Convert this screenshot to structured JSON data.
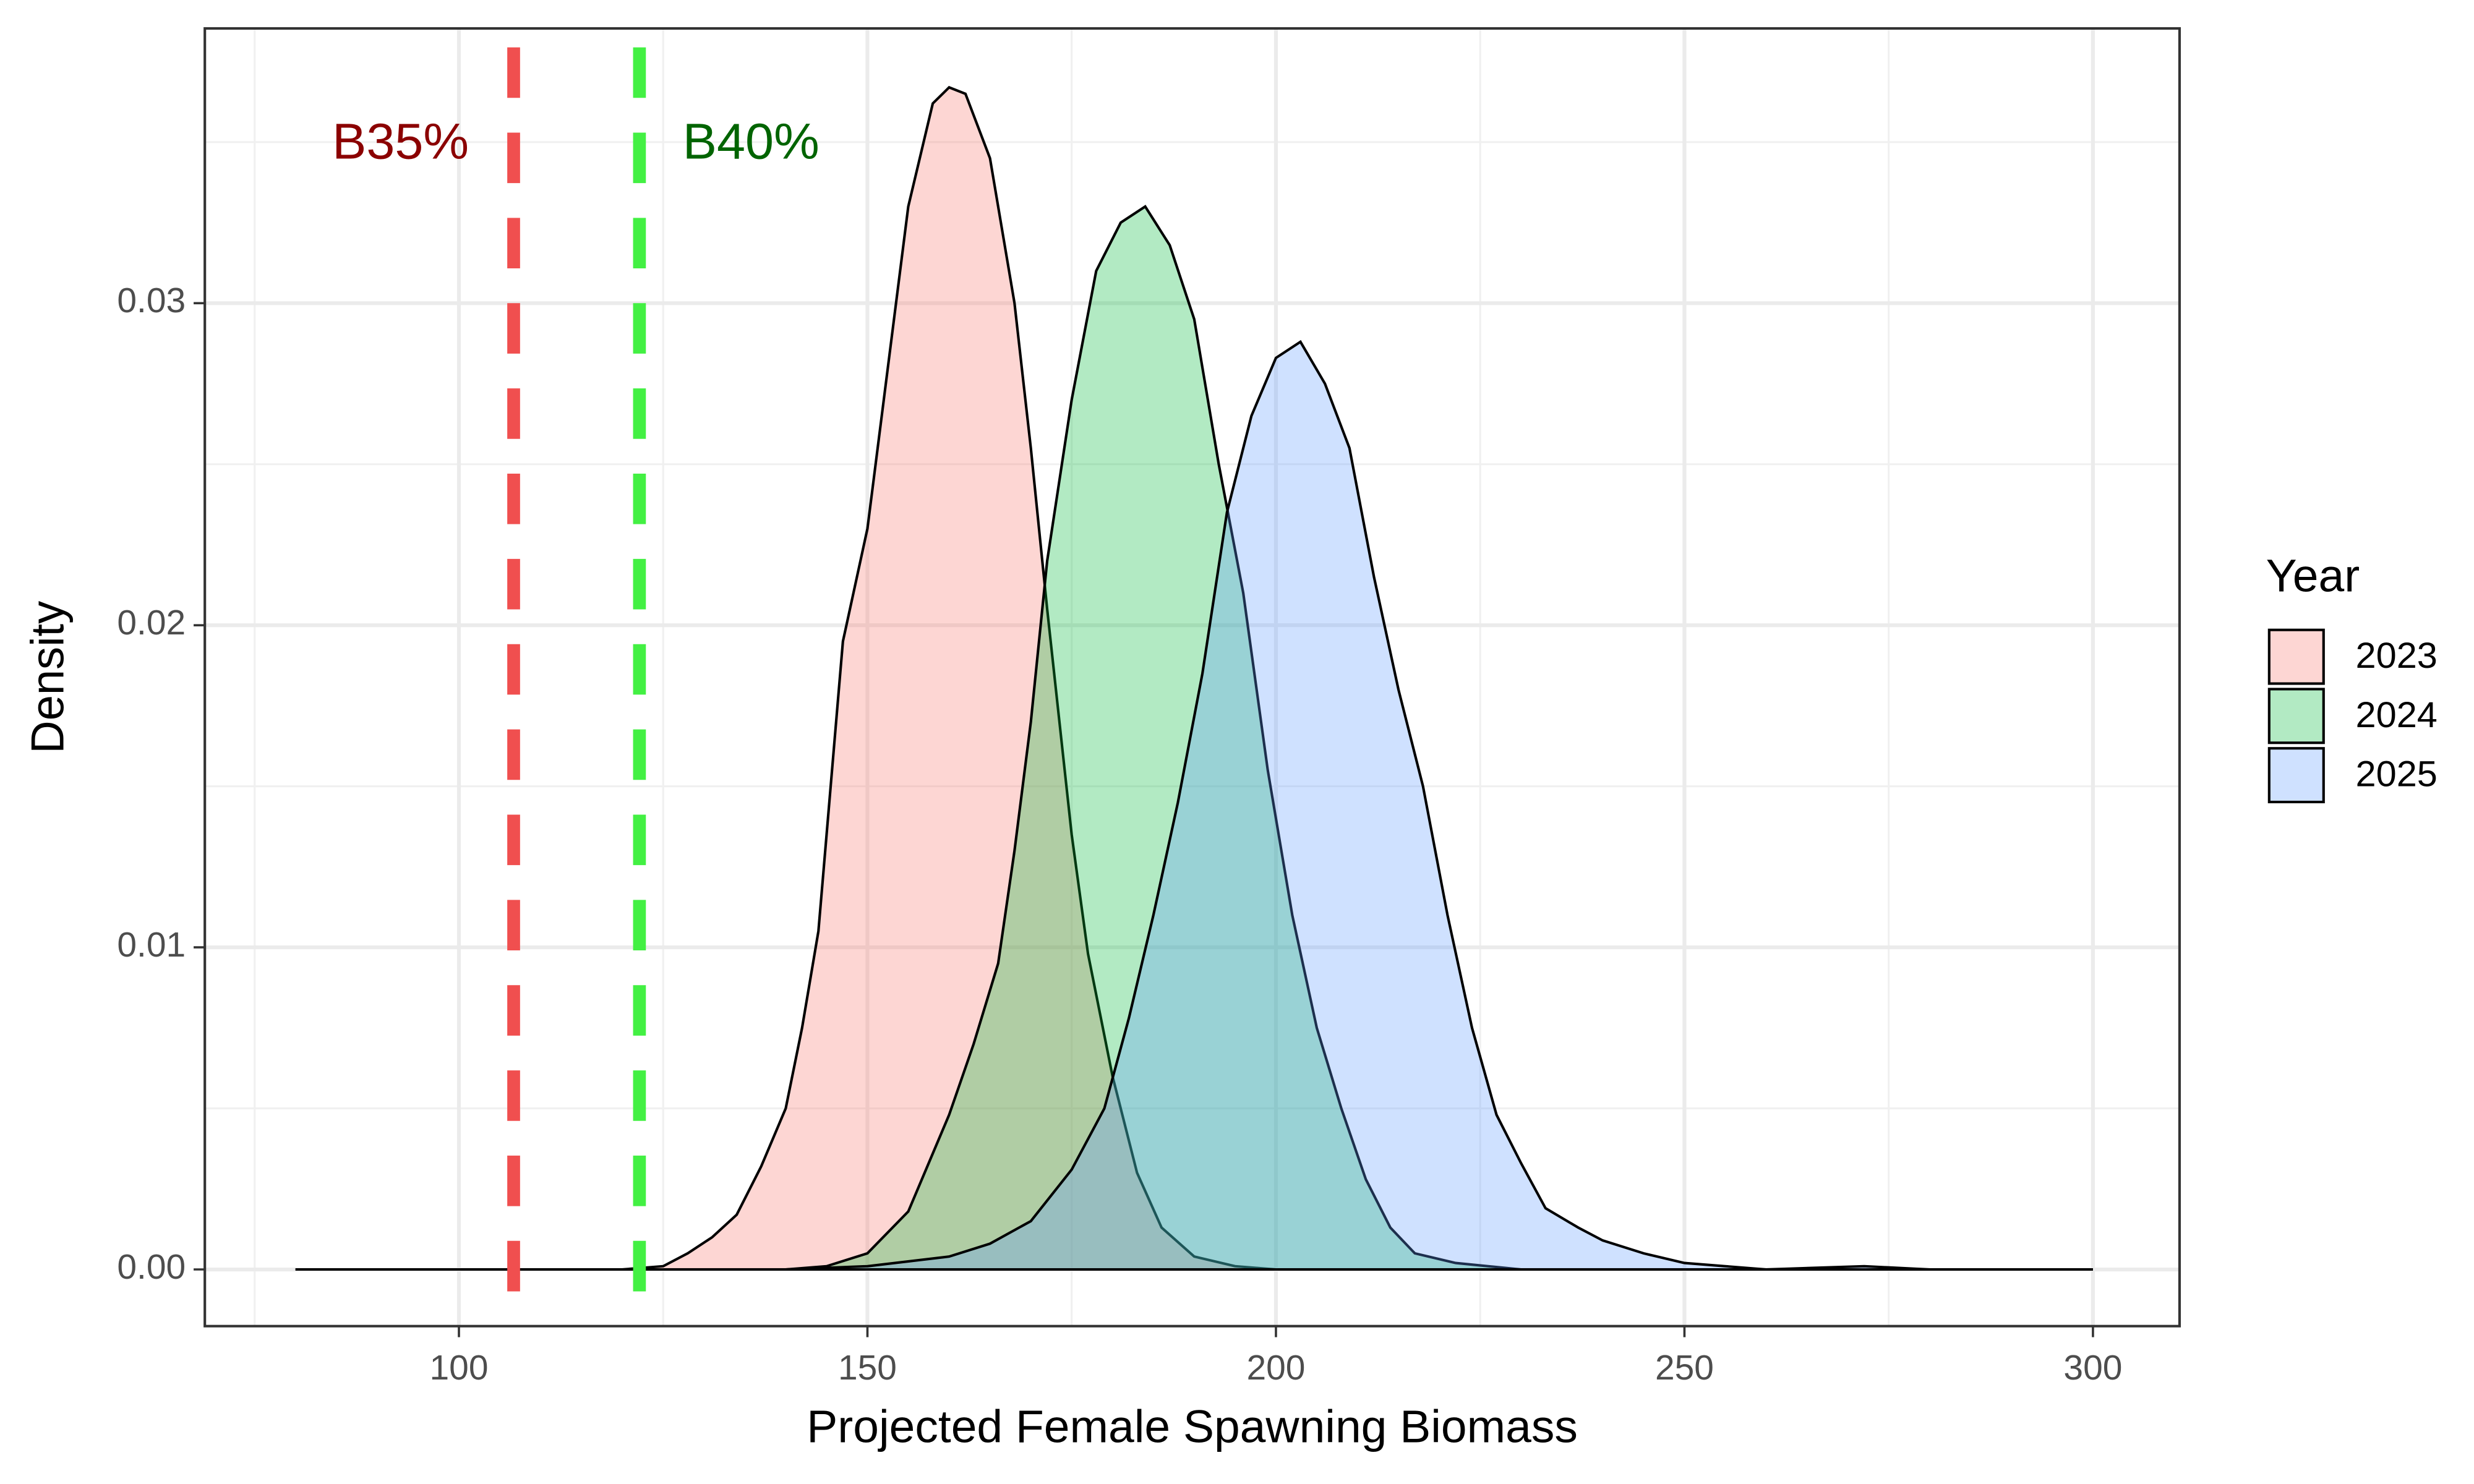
{
  "chart_data": {
    "type": "density",
    "xlabel": "Projected Female Spawning Biomass",
    "ylabel": "Density",
    "xlim": [
      68.9,
      310.6
    ],
    "ylim": [
      -0.00176,
      0.03853
    ],
    "xticks": [
      100,
      150,
      200,
      250,
      300
    ],
    "yticks": [
      {
        "value": 0,
        "label": "0.00"
      },
      0.01,
      0.02,
      0.03
    ],
    "xminor_ticks": [
      75,
      125,
      175,
      225,
      275
    ],
    "yminor_ticks": [
      0.005,
      0.015,
      0.025,
      0.035
    ],
    "grid": true,
    "fill_opacity": 0.3,
    "legend_title": "Year",
    "legend_position": "right",
    "vlines": [
      {
        "label": "B35%",
        "x": 106.7,
        "color": "#f04f4f",
        "label_color": "#8b0000",
        "label_side": "left"
      },
      {
        "label": "B40%",
        "x": 122.1,
        "color": "#43f043",
        "label_color": "#006400",
        "label_side": "right"
      }
    ],
    "series": [
      {
        "name": "2023",
        "color": "#F8766D",
        "x": [
          80,
          120,
          125,
          128,
          131,
          134,
          137,
          140,
          142,
          144,
          145,
          147,
          150,
          152,
          155,
          158,
          160,
          162,
          165,
          168,
          170,
          172,
          175,
          177,
          180,
          183,
          186,
          190,
          195,
          200,
          300
        ],
        "values": [
          0,
          0,
          0.0001,
          0.0005,
          0.001,
          0.0017,
          0.0032,
          0.005,
          0.0075,
          0.0105,
          0.0135,
          0.0195,
          0.023,
          0.027,
          0.033,
          0.0362,
          0.0367,
          0.0365,
          0.0345,
          0.03,
          0.0255,
          0.0205,
          0.0135,
          0.0098,
          0.006,
          0.003,
          0.0013,
          0.0004,
          0.0001,
          0,
          0
        ]
      },
      {
        "name": "2024",
        "color": "#00BA38",
        "x": [
          80,
          140,
          145,
          150,
          155,
          160,
          163,
          166,
          168,
          170,
          172,
          175,
          178,
          181,
          184,
          187,
          190,
          193,
          196,
          199,
          202,
          205,
          208,
          211,
          214,
          217,
          222,
          230,
          300
        ],
        "values": [
          0,
          0,
          0.0001,
          0.0005,
          0.0018,
          0.0048,
          0.007,
          0.0095,
          0.013,
          0.017,
          0.022,
          0.027,
          0.031,
          0.0325,
          0.033,
          0.0318,
          0.0295,
          0.025,
          0.021,
          0.0155,
          0.011,
          0.0075,
          0.005,
          0.0028,
          0.0013,
          0.0005,
          0.0002,
          0,
          0
        ]
      },
      {
        "name": "2025",
        "color": "#619CFF",
        "x": [
          80,
          140,
          150,
          160,
          165,
          170,
          175,
          179,
          182,
          185,
          188,
          191,
          194,
          197,
          200,
          203,
          206,
          209,
          212,
          215,
          218,
          221,
          224,
          227,
          230,
          233,
          237,
          240,
          245,
          250,
          255,
          260,
          272,
          280,
          300
        ],
        "values": [
          0,
          0,
          0.0001,
          0.0004,
          0.0008,
          0.0015,
          0.0031,
          0.005,
          0.0078,
          0.011,
          0.0145,
          0.0185,
          0.0235,
          0.0265,
          0.0283,
          0.0288,
          0.0275,
          0.0255,
          0.0215,
          0.018,
          0.015,
          0.011,
          0.0075,
          0.0048,
          0.0033,
          0.0019,
          0.0013,
          0.0009,
          0.0005,
          0.0002,
          0.0001,
          0,
          0.0001,
          0,
          0
        ]
      }
    ]
  }
}
